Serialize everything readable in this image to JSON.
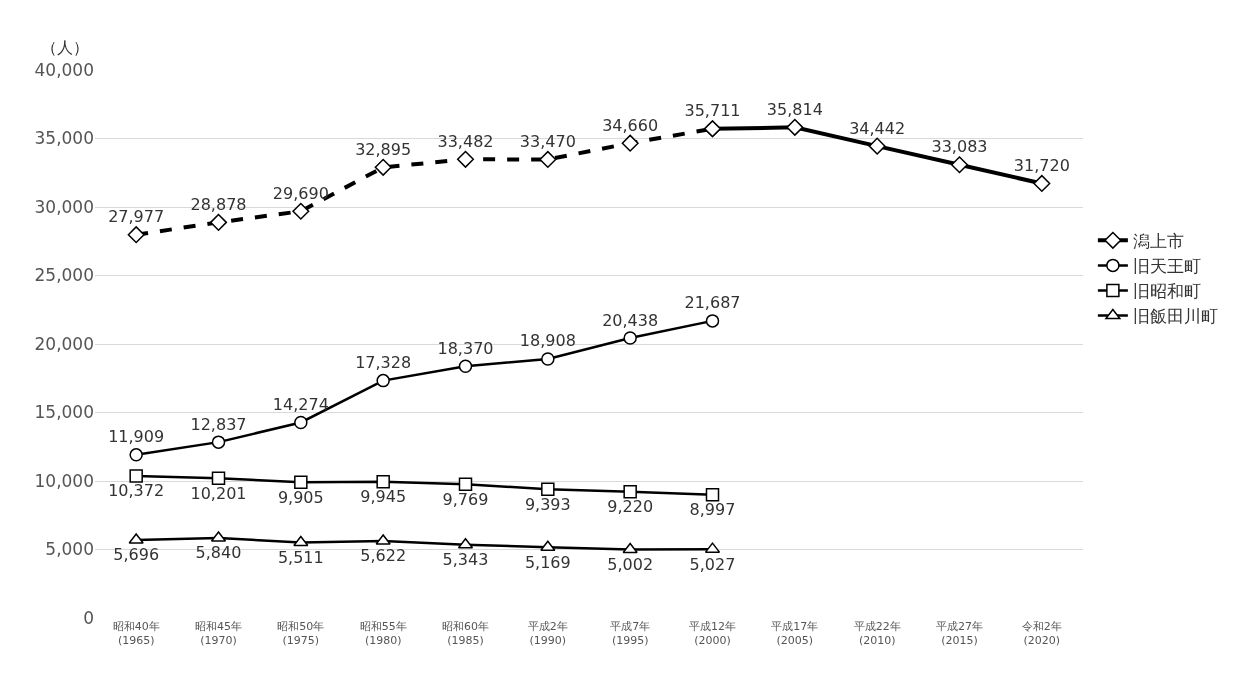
{
  "chart_data": {
    "type": "line",
    "ylabel": "（人）",
    "categories": [
      "昭和40年\n(1965)",
      "昭和45年\n(1970)",
      "昭和50年\n(1975)",
      "昭和55年\n(1980)",
      "昭和60年\n(1985)",
      "平成2年\n(1990)",
      "平成7年\n(1995)",
      "平成12年\n(2000)",
      "平成17年\n(2005)",
      "平成22年\n(2010)",
      "平成27年\n(2015)",
      "令和2年\n(2020)"
    ],
    "series": [
      {
        "name": "潟上市",
        "color": "#000000",
        "marker": "diamond",
        "line_style": "solid",
        "values": [
          null,
          null,
          null,
          null,
          null,
          null,
          null,
          35711,
          35814,
          34442,
          33083,
          31720
        ],
        "value_labels": [
          null,
          null,
          null,
          null,
          null,
          null,
          null,
          null,
          "35,814",
          "34,442",
          "33,083",
          "31,720"
        ]
      },
      {
        "name": "旧天王町",
        "color": "#000000",
        "marker": "circle",
        "line_style": "solid",
        "values": [
          11909,
          12837,
          14274,
          17328,
          18370,
          18908,
          20438,
          21687,
          null,
          null,
          null,
          null
        ],
        "value_labels": [
          "11,909",
          "12,837",
          "14,274",
          "17,328",
          "18,370",
          "18,908",
          "20,438",
          "21,687",
          null,
          null,
          null,
          null
        ]
      },
      {
        "name": "旧昭和町",
        "color": "#000000",
        "marker": "square",
        "line_style": "solid",
        "values": [
          10372,
          10201,
          9905,
          9945,
          9769,
          9393,
          9220,
          8997,
          null,
          null,
          null,
          null
        ],
        "value_labels": [
          "10,372",
          "10,201",
          "9,905",
          "9,945",
          "9,769",
          "9,393",
          "9,220",
          "8,997",
          null,
          null,
          null,
          null
        ]
      },
      {
        "name": "旧飯田川町",
        "color": "#000000",
        "marker": "triangle",
        "line_style": "solid",
        "values": [
          5696,
          5840,
          5511,
          5622,
          5343,
          5169,
          5002,
          5027,
          null,
          null,
          null,
          null
        ],
        "value_labels": [
          "5,696",
          "5,840",
          "5,511",
          "5,622",
          "5,343",
          "5,169",
          "5,002",
          "5,027",
          null,
          null,
          null,
          null
        ]
      },
      {
        "color": "#000000",
        "marker": "diamond",
        "line_style": "dashed",
        "values": [
          27977,
          28878,
          29690,
          32895,
          33482,
          33470,
          34660,
          35711,
          null,
          null,
          null,
          null
        ],
        "value_labels": [
          "27,977",
          "28,878",
          "29,690",
          "32,895",
          "33,482",
          "33,470",
          "34,660",
          "35,711",
          null,
          null,
          null,
          null
        ]
      }
    ],
    "ylim": [
      0,
      40000
    ],
    "yticks": [
      {
        "value": 0,
        "label": "0"
      },
      {
        "value": 5000,
        "label": "5,000"
      },
      {
        "value": 10000,
        "label": "10,000"
      },
      {
        "value": 15000,
        "label": "15,000"
      },
      {
        "value": 20000,
        "label": "20,000"
      },
      {
        "value": 25000,
        "label": "25,000"
      },
      {
        "value": 30000,
        "label": "30,000"
      },
      {
        "value": 35000,
        "label": "35,000"
      },
      {
        "value": 40000,
        "label": "40,000"
      }
    ],
    "grid": "y",
    "legend": "right"
  }
}
